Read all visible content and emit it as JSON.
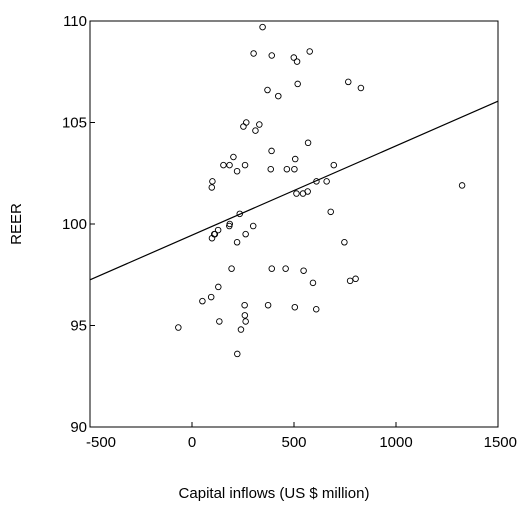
{
  "chart_data": {
    "type": "scatter",
    "title": "",
    "xlabel": "Capital inflows (US $ million)",
    "ylabel": "REER",
    "xlim": [
      -500,
      1500
    ],
    "ylim": [
      90,
      110
    ],
    "xticks": [
      -500,
      0,
      500,
      1000,
      1500
    ],
    "yticks": [
      90,
      95,
      100,
      105,
      110
    ],
    "xtick_labels": [
      "-500",
      "0",
      "500",
      "1000",
      "1500"
    ],
    "ytick_labels": [
      "90",
      "95",
      "100",
      "105",
      "110"
    ],
    "grid": false,
    "legend": "none",
    "marker": "hollow-circle",
    "colors": {
      "points": "#000000",
      "line": "#000000",
      "axes": "#000000"
    },
    "series": [
      {
        "x": [
          346,
          302,
          391,
          577,
          499,
          515,
          766,
          828,
          370,
          423,
          518,
          266,
          252,
          330,
          311,
          390,
          569,
          506,
          502,
          695,
          465,
          203,
          154,
          260,
          221,
          184,
          386,
          610,
          660,
          544,
          1324,
          512,
          567,
          100,
          97,
          234,
          680,
          300,
          183,
          185,
          128,
          112,
          109,
          263,
          221,
          747,
          98,
          194,
          51,
          459,
          391,
          547,
          593,
          775,
          802,
          129,
          94,
          258,
          259,
          263,
          240,
          134,
          504,
          609,
          373,
          -67,
          222
        ],
        "y": [
          109.7,
          108.4,
          108.3,
          108.5,
          108.2,
          108.0,
          107.0,
          106.7,
          106.6,
          106.3,
          106.9,
          105.0,
          104.8,
          104.9,
          104.6,
          103.6,
          104.0,
          103.2,
          102.7,
          102.9,
          102.7,
          103.3,
          102.9,
          102.9,
          102.6,
          102.9,
          102.7,
          102.1,
          102.1,
          101.5,
          101.9,
          101.5,
          101.6,
          102.1,
          101.8,
          100.5,
          100.6,
          99.9,
          99.9,
          100.0,
          99.7,
          99.5,
          99.5,
          99.5,
          99.1,
          99.1,
          99.3,
          97.8,
          96.2,
          97.8,
          97.8,
          97.7,
          97.1,
          97.2,
          97.3,
          96.9,
          96.4,
          96.0,
          95.5,
          95.2,
          94.8,
          95.2,
          95.9,
          95.8,
          96.0,
          94.9,
          93.6
        ]
      }
    ],
    "regression": {
      "x": [
        -500,
        1500
      ],
      "y": [
        97.25,
        106.05
      ]
    }
  }
}
